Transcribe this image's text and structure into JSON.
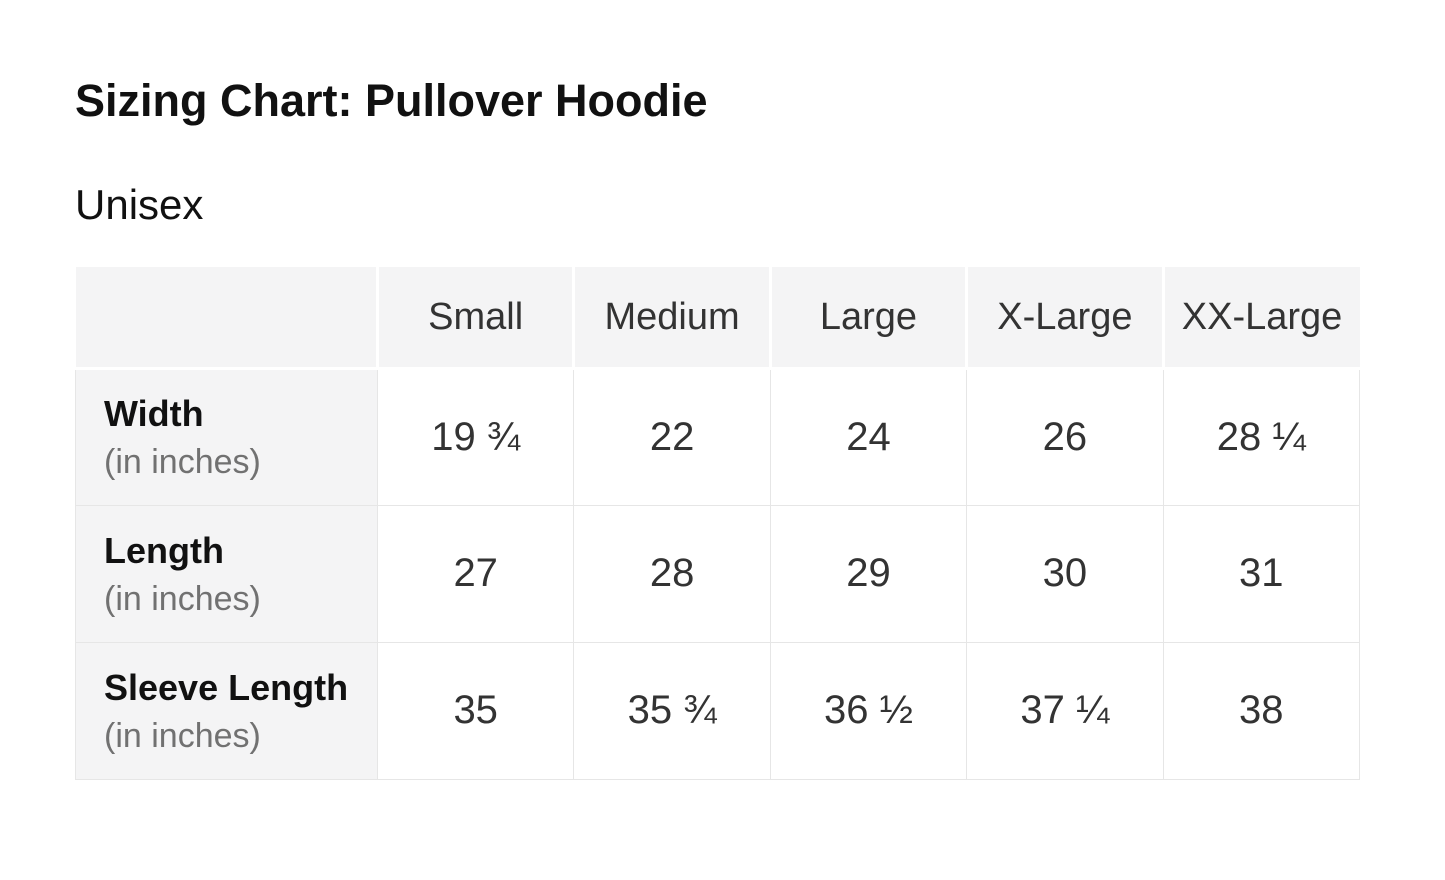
{
  "page": {
    "title": "Sizing Chart: Pullover Hoodie",
    "subtitle": "Unisex"
  },
  "chart_data": {
    "type": "table",
    "title": "Sizing Chart: Pullover Hoodie",
    "group": "Unisex",
    "unit_note": "(in inches)",
    "columns": [
      "",
      "Small",
      "Medium",
      "Large",
      "X-Large",
      "XX-Large"
    ],
    "rows": [
      {
        "label": "Width",
        "unit": "(in inches)",
        "values": [
          "19 ¾",
          "22",
          "24",
          "26",
          "28 ¼"
        ]
      },
      {
        "label": "Length",
        "unit": "(in inches)",
        "values": [
          "27",
          "28",
          "29",
          "30",
          "31"
        ]
      },
      {
        "label": "Sleeve Length",
        "unit": "(in inches)",
        "values": [
          "35",
          "35 ¾",
          "36 ½",
          "37 ¼",
          "38"
        ]
      }
    ],
    "rows_numeric": {
      "width_in": [
        19.75,
        22,
        24,
        26,
        28.25
      ],
      "length_in": [
        27,
        28,
        29,
        30,
        31
      ],
      "sleeve_length_in": [
        35,
        35.75,
        36.5,
        37.25,
        38
      ]
    },
    "layout": {
      "legend": "none",
      "grid": "on",
      "header_row": "top",
      "label_column": "left"
    },
    "colors": {
      "header_bg": "#f4f4f5",
      "label_bg": "#f4f4f5",
      "cell_bg": "#ffffff",
      "grid_border": "#e6e6e6",
      "text": "#333333",
      "strong_text": "#111111",
      "muted_text": "#717171"
    }
  }
}
